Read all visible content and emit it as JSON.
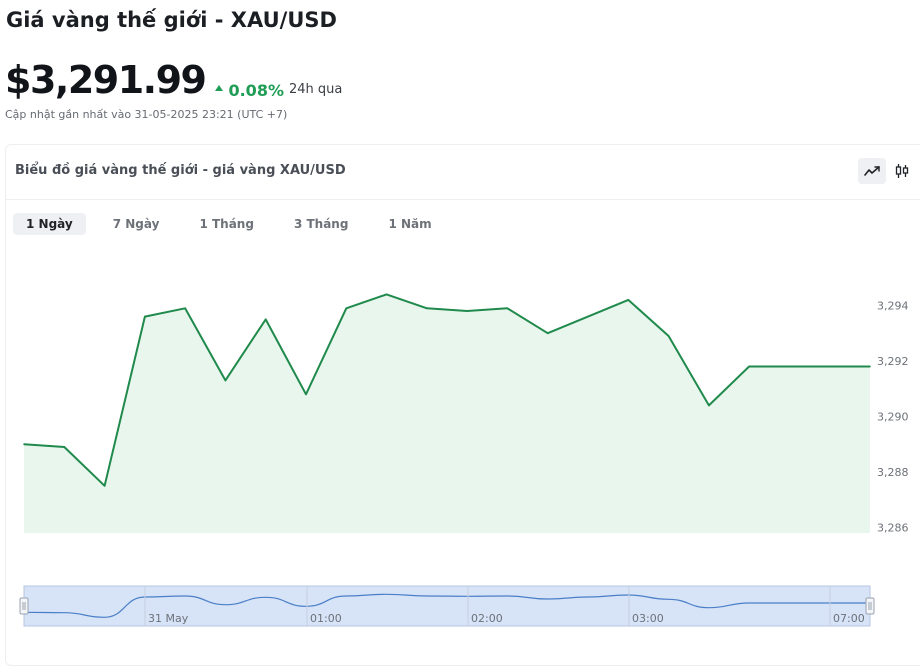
{
  "header": {
    "title": "Giá vàng thế giới - XAU/USD",
    "price": "$3,291.99",
    "change": "0.08%",
    "change_period": "24h qua",
    "updated": "Cập nhật gần nhất vào 31-05-2025 23:21 (UTC +7)",
    "up_color": "#1f9d55"
  },
  "chart_panel": {
    "title": "Biểu đồ giá vàng thế giới - giá vàng XAU/USD",
    "line_button_icon": "line-chart-icon",
    "candle_button_icon": "candlestick-icon",
    "tabs": [
      {
        "label": "1 Ngày",
        "active": true
      },
      {
        "label": "7 Ngày",
        "active": false
      },
      {
        "label": "1 Tháng",
        "active": false
      },
      {
        "label": "3 Tháng",
        "active": false
      },
      {
        "label": "1 Năm",
        "active": false
      }
    ]
  },
  "chart_data": {
    "type": "area",
    "series": [
      {
        "values": [
          3289.0,
          3288.9,
          3287.5,
          3293.6,
          3293.9,
          3291.3,
          3293.5,
          3290.8,
          3293.9,
          3294.4,
          3293.9,
          3293.8,
          3293.9,
          3293.0,
          3293.6,
          3294.2,
          3292.9,
          3290.4,
          3291.8,
          3291.8,
          3291.8,
          3291.8
        ]
      }
    ],
    "y_ticks": [
      "3,294",
      "3,292",
      "3,290",
      "3,288",
      "3,286"
    ],
    "ylim": [
      3285.8,
      3296.0
    ],
    "navigator_labels": [
      "31 May",
      "01:00",
      "02:00",
      "03:00",
      "07:00"
    ],
    "line_color": "#1f8a4c",
    "fill_color": "#e9f6ee",
    "navigator_fill": "#d7e3f7",
    "navigator_line": "#4a7fc8"
  }
}
